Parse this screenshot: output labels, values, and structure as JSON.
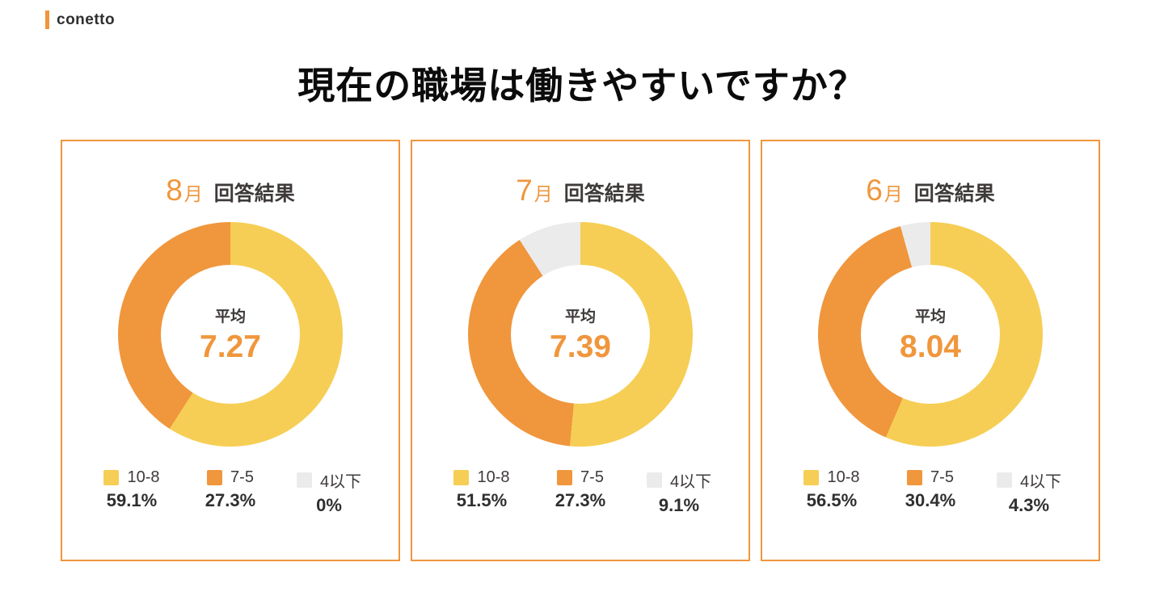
{
  "brand": {
    "name": "conetto"
  },
  "title": "現在の職場は働きやすいですか？",
  "labels": {
    "month_suffix": "月",
    "results": "回答結果",
    "average": "平均"
  },
  "colors": {
    "accent_orange": "#F0963C",
    "segment_yellow": "#F6CE55",
    "segment_orange": "#F0963C",
    "segment_gray": "#EBEBEB",
    "dark_text": "#3E3A39",
    "title_text": "#0B0B0B"
  },
  "chart_data": [
    {
      "type": "pie",
      "title": "8月 回答結果",
      "month": "8",
      "average": "7.27",
      "categories": [
        "10-8",
        "7-5",
        "4以下"
      ],
      "values": [
        59.1,
        27.3,
        0
      ],
      "value_labels": [
        "59.1%",
        "27.3%",
        "0%"
      ],
      "center_label": "平均",
      "layout": "donut, yellow segment starts at 12 o'clock clockwise, gray segment ends at 12 o'clock, orange fills remainder, legend below"
    },
    {
      "type": "pie",
      "title": "7月 回答結果",
      "month": "7",
      "average": "7.39",
      "categories": [
        "10-8",
        "7-5",
        "4以下"
      ],
      "values": [
        51.5,
        27.3,
        9.1
      ],
      "value_labels": [
        "51.5%",
        "27.3%",
        "9.1%"
      ],
      "center_label": "平均",
      "layout": "donut, yellow segment starts at 12 o'clock clockwise, gray segment ends at 12 o'clock, orange fills remainder, legend below"
    },
    {
      "type": "pie",
      "title": "6月 回答結果",
      "month": "6",
      "average": "8.04",
      "categories": [
        "10-8",
        "7-5",
        "4以下"
      ],
      "values": [
        56.5,
        30.4,
        4.3
      ],
      "value_labels": [
        "56.5%",
        "30.4%",
        "4.3%"
      ],
      "center_label": "平均",
      "layout": "donut, yellow segment starts at 12 o'clock clockwise, gray segment ends at 12 o'clock, orange fills remainder, legend below"
    }
  ]
}
